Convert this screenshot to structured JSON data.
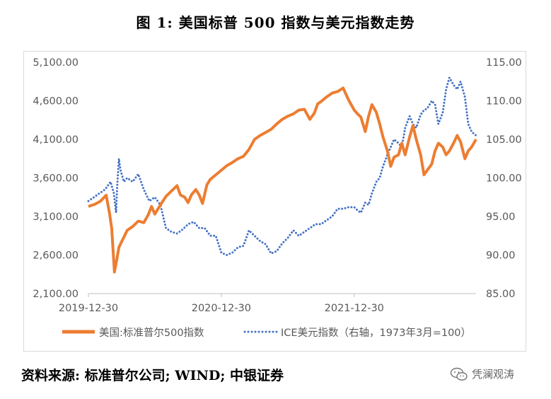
{
  "title": "图 1:  美国标普 500 指数与美元指数走势",
  "source": "资料来源: 标准普尔公司; WIND; 中银证券",
  "watermark": "凭澜观涛",
  "chart_data": {
    "type": "line",
    "x_tick_labels": [
      "2019-12-30",
      "2020-12-30",
      "2021-12-30"
    ],
    "x_ticks_month_index": [
      0,
      12,
      24
    ],
    "x_range_months": [
      0,
      35
    ],
    "left_axis": {
      "min": 2100,
      "max": 5100,
      "step": 500,
      "tick_labels": [
        "2,100.00",
        "2,600.00",
        "3,100.00",
        "3,600.00",
        "4,100.00",
        "4,600.00",
        "5,100.00"
      ]
    },
    "right_axis": {
      "min": 85,
      "max": 115,
      "step": 5,
      "tick_labels": [
        "85.00",
        "90.00",
        "95.00",
        "100.00",
        "105.00",
        "110.00",
        "115.00"
      ]
    },
    "series": [
      {
        "name": "美国:标准普尔500指数",
        "axis": "left",
        "style": "solid",
        "color": "#ED7D31",
        "x_months": [
          0,
          0.6,
          1.1,
          1.6,
          1.9,
          2.1,
          2.35,
          2.55,
          2.75,
          2.95,
          3.2,
          3.5,
          4,
          4.5,
          5,
          5.4,
          5.7,
          6,
          6.5,
          7,
          7.5,
          8,
          8.3,
          8.7,
          9,
          9.3,
          9.7,
          10,
          10.3,
          10.7,
          11,
          11.5,
          12,
          12.5,
          13,
          13.5,
          14,
          14.5,
          15,
          15.5,
          16,
          16.5,
          17,
          17.5,
          18,
          18.5,
          19,
          19.5,
          20,
          20.4,
          20.7,
          21,
          21.5,
          22,
          22.5,
          23,
          23.5,
          24,
          24.3,
          24.6,
          25,
          25.3,
          25.6,
          26,
          26.3,
          26.6,
          27,
          27.3,
          27.6,
          28,
          28.3,
          28.6,
          29,
          29.3,
          29.6,
          30,
          30.3,
          30.6,
          31,
          31.3,
          31.6,
          32,
          32.3,
          32.6,
          33,
          33.3,
          33.6,
          34,
          34.3,
          34.6,
          35
        ],
        "values": [
          3230,
          3260,
          3300,
          3375,
          3150,
          2950,
          2380,
          2530,
          2700,
          2760,
          2830,
          2920,
          2970,
          3040,
          3020,
          3120,
          3230,
          3130,
          3250,
          3360,
          3430,
          3500,
          3380,
          3350,
          3280,
          3380,
          3450,
          3380,
          3270,
          3510,
          3580,
          3640,
          3700,
          3760,
          3800,
          3850,
          3880,
          3970,
          4100,
          4150,
          4190,
          4230,
          4300,
          4360,
          4400,
          4430,
          4480,
          4490,
          4360,
          4440,
          4560,
          4590,
          4650,
          4700,
          4720,
          4766,
          4610,
          4480,
          4430,
          4390,
          4200,
          4400,
          4550,
          4450,
          4300,
          4130,
          3950,
          3750,
          3870,
          3900,
          4050,
          3900,
          4130,
          4280,
          4100,
          3900,
          3640,
          3700,
          3780,
          3950,
          4050,
          4000,
          3900,
          3950,
          4060,
          4150,
          4070,
          3850,
          3950,
          4000,
          4100
        ]
      },
      {
        "name": "ICE美元指数（右轴，1973年3月=100）",
        "axis": "right",
        "style": "dotted",
        "color": "#4472C4",
        "x_months": [
          0,
          0.5,
          1,
          1.5,
          2,
          2.3,
          2.5,
          2.6,
          2.75,
          2.9,
          3.2,
          3.5,
          4,
          4.5,
          5,
          5.5,
          6,
          6.5,
          7,
          7.5,
          8,
          8.5,
          9,
          9.5,
          10,
          10.5,
          11,
          11.5,
          12,
          12.5,
          13,
          13.5,
          14,
          14.5,
          15,
          15.5,
          16,
          16.5,
          17,
          17.5,
          18,
          18.5,
          19,
          19.5,
          20,
          20.5,
          21,
          21.5,
          22,
          22.5,
          23,
          23.5,
          24,
          24.3,
          24.6,
          25,
          25.3,
          25.6,
          26,
          26.3,
          26.6,
          27,
          27.3,
          27.6,
          28,
          28.3,
          28.6,
          29,
          29.3,
          29.6,
          30,
          30.3,
          30.6,
          31,
          31.3,
          31.6,
          32,
          32.3,
          32.6,
          33,
          33.3,
          33.6,
          34,
          34.3,
          34.6,
          35
        ],
        "values": [
          97,
          97.5,
          98,
          98.5,
          99.5,
          98,
          95.5,
          99,
          102.5,
          101,
          99.5,
          100,
          99.5,
          100.5,
          98.5,
          97,
          97.5,
          96.5,
          93.5,
          93,
          92.8,
          93.3,
          94,
          94.3,
          93.5,
          93.5,
          92.5,
          92.5,
          90.3,
          90,
          90.3,
          91,
          91.2,
          93.2,
          92.5,
          91.8,
          91.4,
          90.2,
          90.5,
          91.5,
          92.2,
          93.2,
          92.5,
          93,
          93.5,
          94,
          94,
          94.5,
          95,
          96,
          96,
          96.2,
          96.2,
          95.8,
          95.5,
          96.8,
          96.5,
          98,
          99.5,
          100,
          101.5,
          103,
          104,
          105,
          104.5,
          104,
          106.5,
          108,
          107,
          106.5,
          108.2,
          108.8,
          109,
          110,
          109.5,
          107,
          108.5,
          111.5,
          113,
          112,
          111.5,
          112.5,
          110.5,
          107,
          106,
          105.5
        ]
      }
    ]
  }
}
